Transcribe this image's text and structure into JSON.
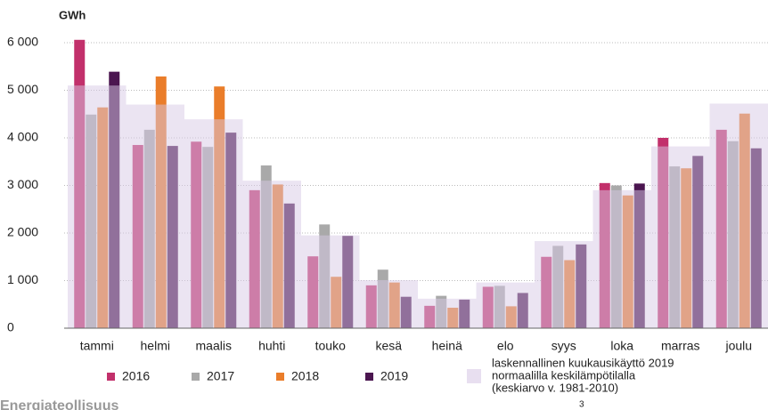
{
  "chart_data": {
    "type": "bar",
    "unit": "GWh",
    "categories": [
      "tammi",
      "helmi",
      "maalis",
      "huhti",
      "touko",
      "kesä",
      "heinä",
      "elo",
      "syys",
      "loka",
      "marras",
      "joulu"
    ],
    "series": [
      {
        "name": "2016",
        "color": "#c2306b",
        "values": [
          6060,
          3850,
          3920,
          2900,
          1510,
          900,
          470,
          870,
          1500,
          3050,
          4000,
          4170
        ]
      },
      {
        "name": "2017",
        "color": "#a9a9a9",
        "values": [
          4490,
          4170,
          3810,
          3420,
          2180,
          1230,
          680,
          890,
          1730,
          3000,
          3400,
          3930
        ]
      },
      {
        "name": "2018",
        "color": "#ea7d2a",
        "values": [
          4640,
          5290,
          5080,
          3020,
          1080,
          960,
          430,
          460,
          1430,
          2790,
          3360,
          4510
        ]
      },
      {
        "name": "2019",
        "color": "#4b1650",
        "values": [
          5390,
          3830,
          4110,
          2620,
          1940,
          660,
          600,
          740,
          1760,
          3040,
          3620,
          3780
        ]
      }
    ],
    "normal": {
      "label": [
        "laskennallinen kuukausikäyttö 2019",
        "normaalilla keskilämpötilalla",
        "(keskiarvo v. 1981-2010)"
      ],
      "color": "#d8c9e6",
      "values": [
        5100,
        4700,
        4390,
        3100,
        1950,
        1010,
        620,
        960,
        1830,
        2900,
        3820,
        4720
      ]
    },
    "ylim": [
      0,
      6000
    ],
    "yticks": [
      0,
      {
        "value": 1000,
        "label": "1 000"
      },
      {
        "value": 2000,
        "label": "2 000"
      },
      {
        "value": 3000,
        "label": "3 000"
      },
      {
        "value": 4000,
        "label": "4 000"
      },
      {
        "value": 5000,
        "label": "5 000"
      },
      {
        "value": 6000,
        "label": "6 000"
      }
    ],
    "grid": true
  },
  "footer": {
    "source": "Energiateollisuus",
    "page": "3"
  }
}
